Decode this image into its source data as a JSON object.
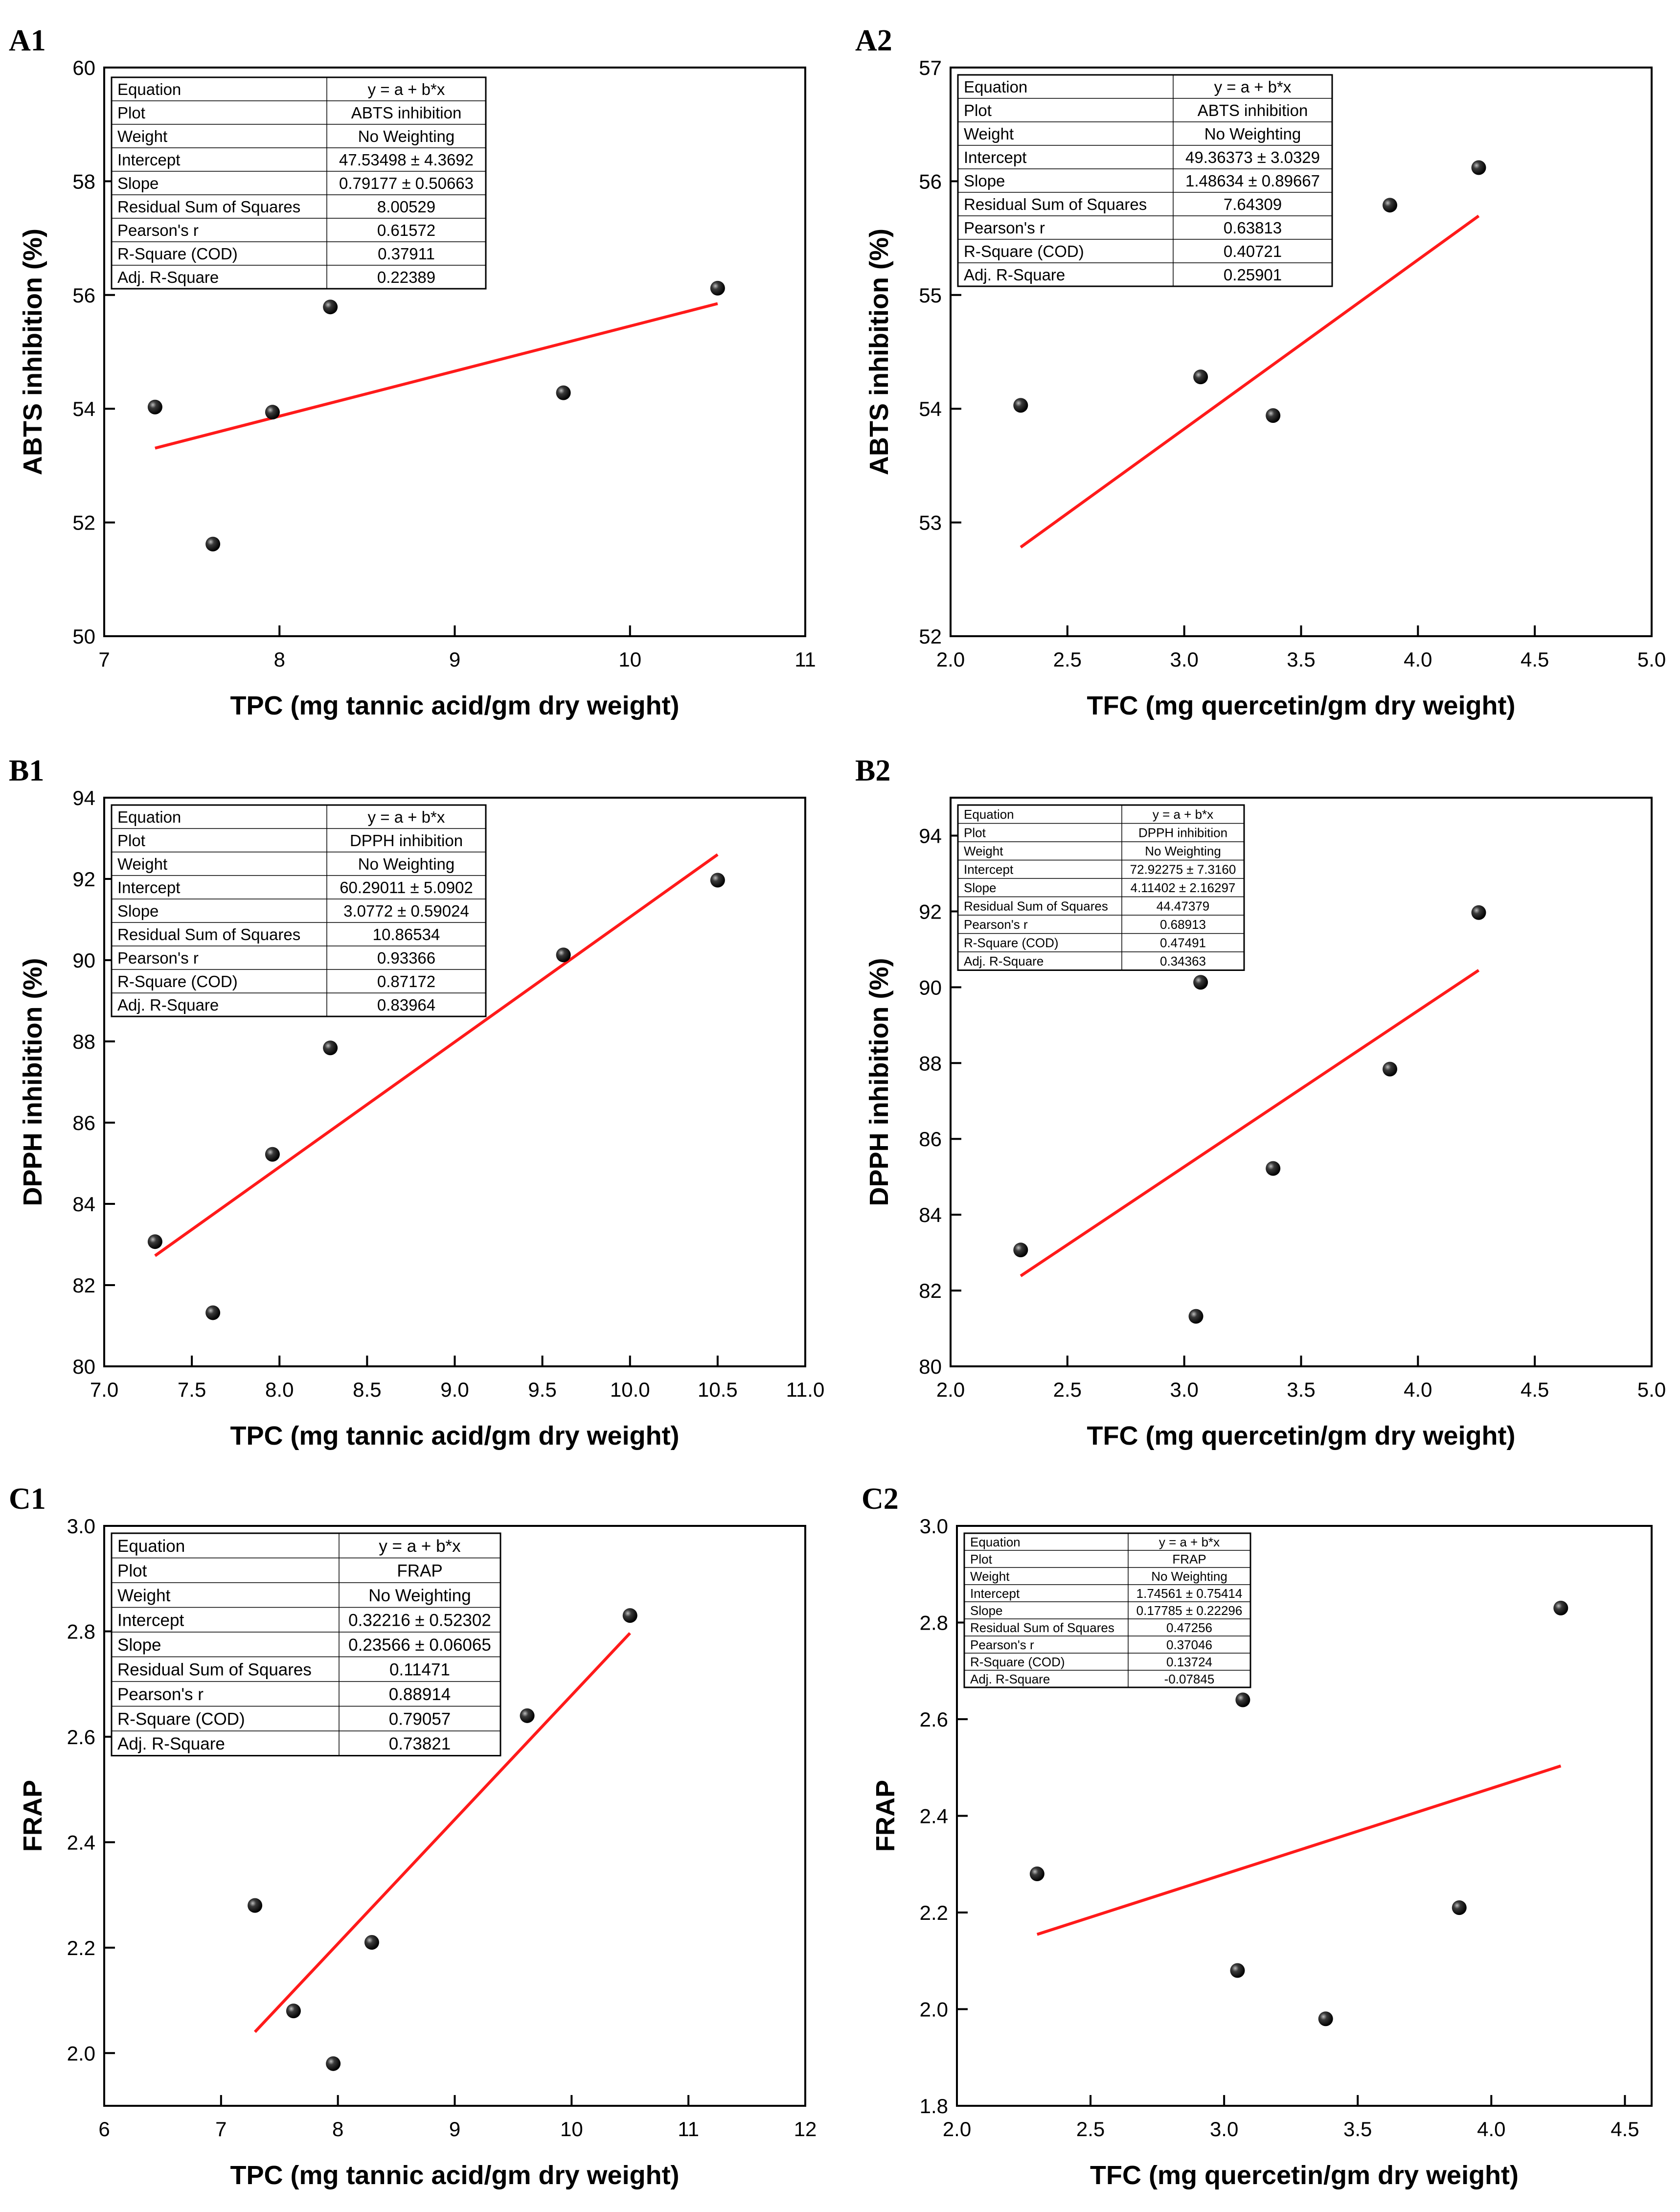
{
  "chart_data": [
    {
      "id": "A1",
      "type": "scatter",
      "panel_label": "A1",
      "xlabel": "TPC (mg tannic acid/gm dry weight)",
      "ylabel": "ABTS inhibition (%)",
      "xlim": [
        7,
        11
      ],
      "ylim": [
        50,
        60
      ],
      "xticks": [
        7,
        8,
        9,
        10,
        11
      ],
      "yticks": [
        50,
        52,
        54,
        56,
        58,
        60
      ],
      "xdec": 0,
      "ydec": 0,
      "points": [
        [
          7.29,
          54.03
        ],
        [
          7.62,
          51.62
        ],
        [
          7.96,
          53.94
        ],
        [
          8.29,
          55.79
        ],
        [
          9.62,
          54.28
        ],
        [
          10.5,
          56.12
        ]
      ],
      "fit": {
        "intercept": 47.53498,
        "slope": 0.79177,
        "x_range": [
          7.29,
          10.5
        ]
      },
      "stats": [
        [
          "Equation",
          "y = a + b*x"
        ],
        [
          "Plot",
          "ABTS inhibition"
        ],
        [
          "Weight",
          "No Weighting"
        ],
        [
          "Intercept",
          "47.53498 ± 4.3692"
        ],
        [
          "Slope",
          "0.79177 ± 0.50663"
        ],
        [
          "Residual Sum of Squares",
          "8.00529"
        ],
        [
          "Pearson's r",
          "0.61572"
        ],
        [
          "R-Square (COD)",
          "0.37911"
        ],
        [
          "Adj. R-Square",
          "0.22389"
        ]
      ]
    },
    {
      "id": "A2",
      "type": "scatter",
      "panel_label": "A2",
      "xlabel": "TFC (mg quercetin/gm dry weight)",
      "ylabel": "ABTS inhibition (%)",
      "xlim": [
        2.0,
        5.0
      ],
      "ylim": [
        52,
        57
      ],
      "xticks": [
        2.0,
        2.5,
        3.0,
        3.5,
        4.0,
        4.5,
        5.0
      ],
      "yticks": [
        52,
        53,
        54,
        55,
        56,
        57
      ],
      "xdec": 1,
      "ydec": 0,
      "points": [
        [
          2.3,
          54.03
        ],
        [
          3.07,
          54.28
        ],
        [
          3.38,
          53.94
        ],
        [
          3.88,
          55.79
        ],
        [
          4.26,
          56.12
        ]
      ],
      "fit": {
        "intercept": 49.36373,
        "slope": 1.48634,
        "x_range": [
          2.3,
          4.26
        ]
      },
      "stats": [
        [
          "Equation",
          "y = a + b*x"
        ],
        [
          "Plot",
          "ABTS inhibition"
        ],
        [
          "Weight",
          "No Weighting"
        ],
        [
          "Intercept",
          "49.36373 ± 3.0329"
        ],
        [
          "Slope",
          "1.48634 ± 0.89667"
        ],
        [
          "Residual Sum of Squares",
          "7.64309"
        ],
        [
          "Pearson's r",
          "0.63813"
        ],
        [
          "R-Square (COD)",
          "0.40721"
        ],
        [
          "Adj. R-Square",
          "0.25901"
        ]
      ]
    },
    {
      "id": "B1",
      "type": "scatter",
      "panel_label": "B1",
      "xlabel": "TPC (mg tannic acid/gm dry weight)",
      "ylabel": "DPPH inhibition (%)",
      "xlim": [
        7.0,
        11.0
      ],
      "ylim": [
        80,
        94
      ],
      "xticks": [
        7.0,
        7.5,
        8.0,
        8.5,
        9.0,
        9.5,
        10.0,
        10.5,
        11.0
      ],
      "yticks": [
        80,
        82,
        84,
        86,
        88,
        90,
        92,
        94
      ],
      "xdec": 1,
      "ydec": 0,
      "points": [
        [
          7.29,
          83.07
        ],
        [
          7.62,
          81.32
        ],
        [
          7.96,
          85.22
        ],
        [
          8.29,
          87.84
        ],
        [
          9.62,
          90.13
        ],
        [
          10.5,
          91.97
        ]
      ],
      "fit": {
        "intercept": 60.29011,
        "slope": 3.0772,
        "x_range": [
          7.29,
          10.5
        ]
      },
      "stats": [
        [
          "Equation",
          "y = a + b*x"
        ],
        [
          "Plot",
          "DPPH inhibition"
        ],
        [
          "Weight",
          "No Weighting"
        ],
        [
          "Intercept",
          "60.29011 ± 5.0902"
        ],
        [
          "Slope",
          "3.0772 ± 0.59024"
        ],
        [
          "Residual Sum of Squares",
          "10.86534"
        ],
        [
          "Pearson's r",
          "0.93366"
        ],
        [
          "R-Square (COD)",
          "0.87172"
        ],
        [
          "Adj. R-Square",
          "0.83964"
        ]
      ]
    },
    {
      "id": "B2",
      "type": "scatter",
      "panel_label": "B2",
      "xlabel": "TFC (mg quercetin/gm dry weight)",
      "ylabel": "DPPH inhibition (%)",
      "xlim": [
        2.0,
        5.0
      ],
      "ylim": [
        80,
        95
      ],
      "xticks": [
        2.0,
        2.5,
        3.0,
        3.5,
        4.0,
        4.5,
        5.0
      ],
      "yticks": [
        80,
        82,
        84,
        86,
        88,
        90,
        92,
        94
      ],
      "xdec": 1,
      "ydec": 0,
      "points": [
        [
          2.3,
          83.07
        ],
        [
          3.05,
          81.32
        ],
        [
          3.07,
          90.13
        ],
        [
          3.38,
          85.22
        ],
        [
          3.88,
          87.84
        ],
        [
          4.26,
          91.97
        ]
      ],
      "fit": {
        "intercept": 72.92275,
        "slope": 4.11402,
        "x_range": [
          2.3,
          4.26
        ]
      },
      "stats": [
        [
          "Equation",
          "y = a + b*x"
        ],
        [
          "Plot",
          "DPPH inhibition"
        ],
        [
          "Weight",
          "No Weighting"
        ],
        [
          "Intercept",
          "72.92275 ± 7.3160"
        ],
        [
          "Slope",
          "4.11402 ± 2.16297"
        ],
        [
          "Residual Sum of Squares",
          "44.47379"
        ],
        [
          "Pearson's r",
          "0.68913"
        ],
        [
          "R-Square (COD)",
          "0.47491"
        ],
        [
          "Adj. R-Square",
          "0.34363"
        ]
      ]
    },
    {
      "id": "C1",
      "type": "scatter",
      "panel_label": "C1",
      "xlabel": "TPC (mg tannic acid/gm dry weight)",
      "ylabel": "FRAP",
      "xlim": [
        6,
        12
      ],
      "ylim": [
        1.9,
        3.0
      ],
      "xticks": [
        6,
        7,
        8,
        9,
        10,
        11,
        12
      ],
      "yticks": [
        2.0,
        2.2,
        2.4,
        2.6,
        2.8,
        3.0
      ],
      "xdec": 0,
      "ydec": 1,
      "points": [
        [
          7.29,
          2.28
        ],
        [
          7.62,
          2.08
        ],
        [
          7.96,
          1.98
        ],
        [
          8.29,
          2.21
        ],
        [
          9.62,
          2.64
        ],
        [
          10.5,
          2.83
        ]
      ],
      "fit": {
        "intercept": 0.32216,
        "slope": 0.23566,
        "x_range": [
          7.29,
          10.5
        ]
      },
      "stats": [
        [
          "Equation",
          "y = a + b*x"
        ],
        [
          "Plot",
          "FRAP"
        ],
        [
          "Weight",
          "No Weighting"
        ],
        [
          "Intercept",
          "0.32216 ± 0.52302"
        ],
        [
          "Slope",
          "0.23566 ± 0.06065"
        ],
        [
          "Residual Sum of Squares",
          "0.11471"
        ],
        [
          "Pearson's r",
          "0.88914"
        ],
        [
          "R-Square (COD)",
          "0.79057"
        ],
        [
          "Adj. R-Square",
          "0.73821"
        ]
      ]
    },
    {
      "id": "C2",
      "type": "scatter",
      "panel_label": "C2",
      "xlabel": "TFC (mg quercetin/gm dry weight)",
      "ylabel": "FRAP",
      "xlim": [
        2.0,
        4.6
      ],
      "ylim": [
        1.8,
        3.0
      ],
      "xticks": [
        2.0,
        2.5,
        3.0,
        3.5,
        4.0,
        4.5
      ],
      "yticks": [
        1.8,
        2.0,
        2.2,
        2.4,
        2.6,
        2.8,
        3.0
      ],
      "xdec": 1,
      "ydec": 1,
      "points": [
        [
          2.3,
          2.28
        ],
        [
          3.05,
          2.08
        ],
        [
          3.07,
          2.64
        ],
        [
          3.38,
          1.98
        ],
        [
          3.88,
          2.21
        ],
        [
          4.26,
          2.83
        ]
      ],
      "fit": {
        "intercept": 1.74561,
        "slope": 0.17785,
        "x_range": [
          2.3,
          4.26
        ]
      },
      "stats": [
        [
          "Equation",
          "y = a + b*x"
        ],
        [
          "Plot",
          "FRAP"
        ],
        [
          "Weight",
          "No Weighting"
        ],
        [
          "Intercept",
          "1.74561 ± 0.75414"
        ],
        [
          "Slope",
          "0.17785 ± 0.22296"
        ],
        [
          "Residual Sum of Squares",
          "0.47256"
        ],
        [
          "Pearson's r",
          "0.37046"
        ],
        [
          "R-Square (COD)",
          "0.13724"
        ],
        [
          "Adj. R-Square",
          "-0.07845"
        ]
      ]
    }
  ]
}
